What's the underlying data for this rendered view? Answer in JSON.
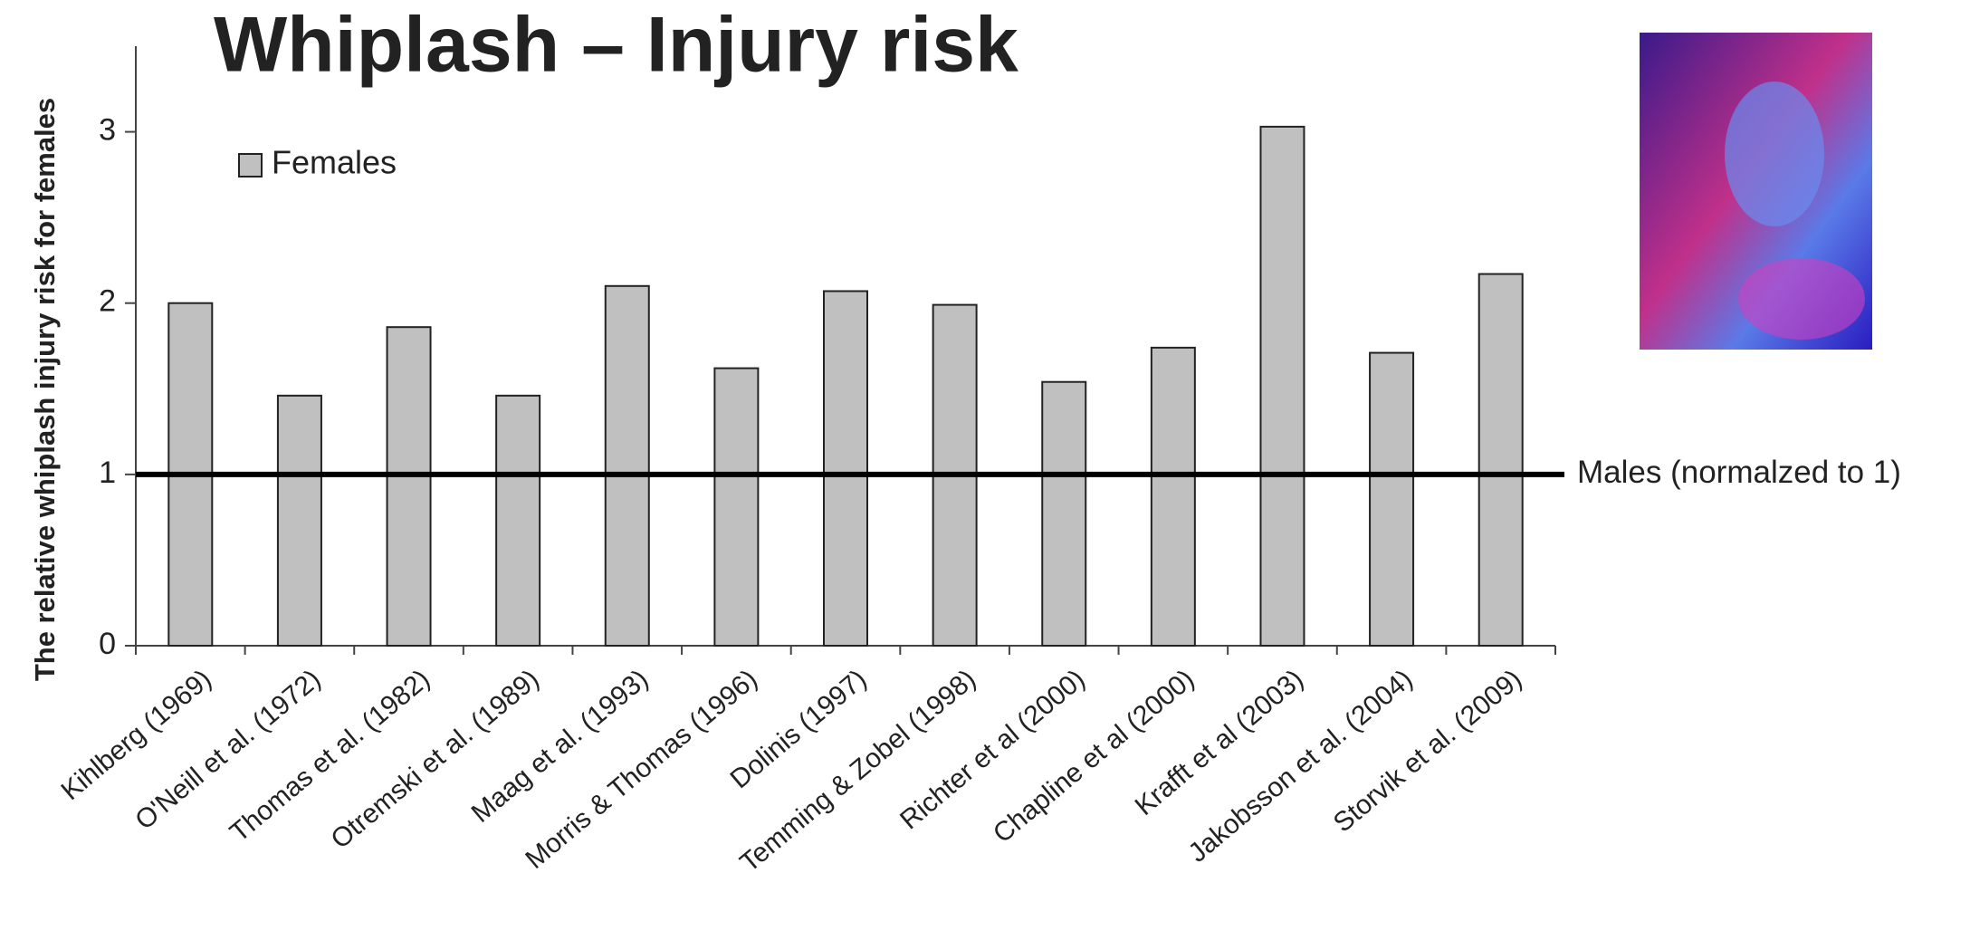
{
  "chart_data": {
    "type": "bar",
    "title": "Whiplash – Injury risk",
    "y_label": "The relative whiplash injury risk for females",
    "categories": [
      "Kihlberg (1969)",
      "O'Neill et al. (1972)",
      "Thomas et al. (1982)",
      "Otremski et al. (1989)",
      "Maag et al. (1993)",
      "Morris & Thomas (1996)",
      "Dolinis (1997)",
      "Temming & Zobel (1998)",
      "Richter et al (2000)",
      "Chapline et al (2000)",
      "Krafft et al (2003)",
      "Jakobsson et al. (2004)",
      "Storvik et al. (2009)"
    ],
    "series": [
      {
        "name": "Females",
        "color": "#c0c0c0",
        "values": [
          2.0,
          1.46,
          1.86,
          1.46,
          2.1,
          1.62,
          2.07,
          1.99,
          1.54,
          1.74,
          3.03,
          1.71,
          2.17
        ]
      }
    ],
    "ylim": [
      0,
      3.5
    ],
    "yticks": [
      0,
      1,
      2,
      3
    ],
    "reference_line": {
      "value": 1,
      "label": "Males (normalzed to 1)"
    },
    "legend": "top-left"
  }
}
